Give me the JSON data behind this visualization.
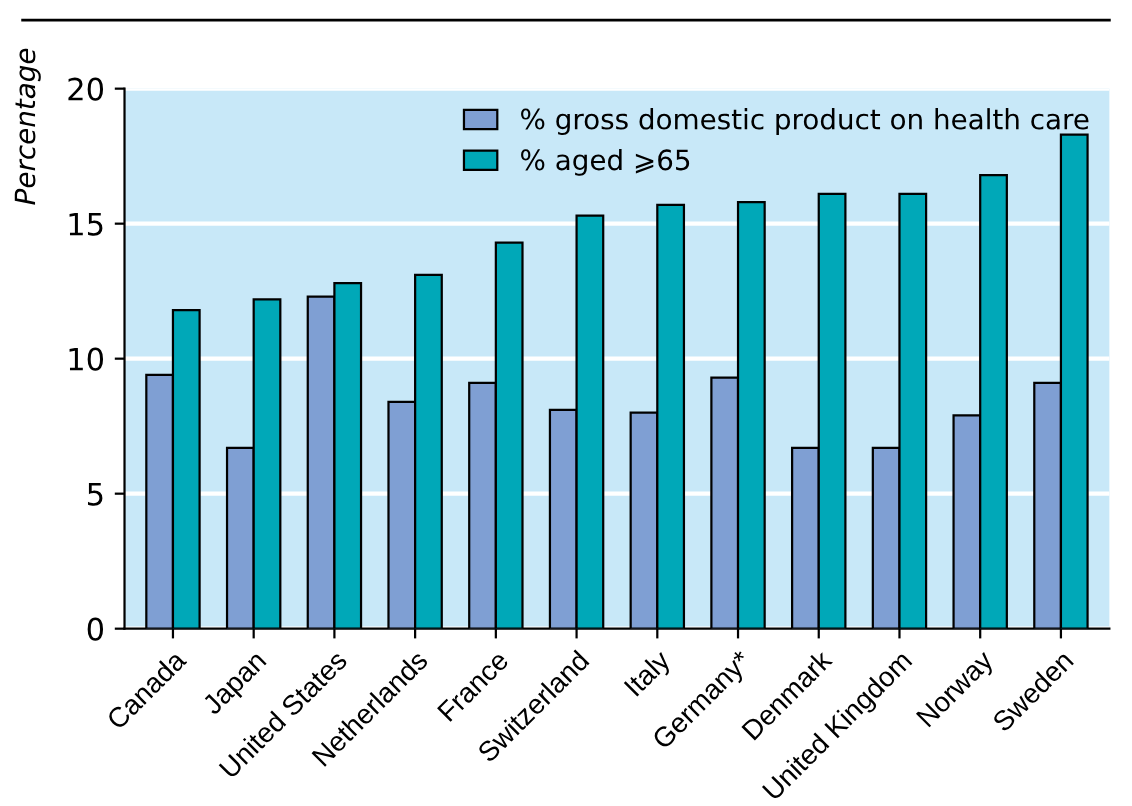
{
  "chart_data": {
    "type": "bar",
    "ylabel": "Percentage",
    "categories": [
      "Canada",
      "Japan",
      "United States",
      "Netherlands",
      "France",
      "Switzerland",
      "Italy",
      "Germany*",
      "Denmark",
      "United Kingdom",
      "Norway",
      "Sweden"
    ],
    "series": [
      {
        "name": "% gross domestic product on health care",
        "color": "#7f9fd3",
        "values": [
          9.4,
          6.7,
          12.3,
          8.4,
          9.1,
          8.1,
          8.0,
          9.3,
          6.7,
          6.7,
          7.9,
          9.1
        ]
      },
      {
        "name": "% aged ⩾65",
        "color": "#00a8b8",
        "values": [
          11.8,
          12.2,
          12.8,
          13.1,
          14.3,
          15.3,
          15.7,
          15.8,
          16.1,
          16.1,
          16.8,
          18.3
        ]
      }
    ],
    "ylim": [
      0,
      20
    ],
    "yticks": [
      0,
      5,
      10,
      15,
      20
    ],
    "grid": "y",
    "legend": "top right"
  }
}
